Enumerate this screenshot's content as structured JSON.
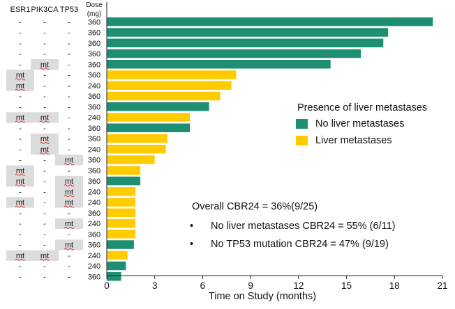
{
  "chart_data": {
    "type": "bar",
    "orientation": "horizontal",
    "xlabel": "Time on Study (months)",
    "xlim": [
      0,
      21
    ],
    "xticks": [
      "0",
      "3",
      "6",
      "9",
      "12",
      "15",
      "18",
      "21"
    ],
    "column_headers": [
      "ESR1",
      "PIK3CA",
      "TP53"
    ],
    "dose_header": [
      "Dose",
      "(mg)"
    ],
    "mutation_label": "mt",
    "no_mutation_label": "-",
    "legend": {
      "title": "Presence of liver metastases",
      "placement": "right",
      "entries": [
        {
          "label": "No liver metastases",
          "color": "#1e8f72"
        },
        {
          "label": "Liver metastases",
          "color": "#ffcc00"
        }
      ]
    },
    "annotations": {
      "overall": "Overall CBR24 = 36%(9/25)",
      "bullet_symbol": "•",
      "bullets": [
        "No liver metastases CBR24 = 55% (6/11)",
        "No TP53 mutation CBR24 = 47% (9/19)"
      ]
    },
    "patients": [
      {
        "esr1": "-",
        "pik3ca": "-",
        "tp53": "-",
        "dose": "360",
        "months": 20.4,
        "liver": false
      },
      {
        "esr1": "-",
        "pik3ca": "-",
        "tp53": "-",
        "dose": "360",
        "months": 17.6,
        "liver": false
      },
      {
        "esr1": "-",
        "pik3ca": "-",
        "tp53": "-",
        "dose": "360",
        "months": 17.3,
        "liver": false
      },
      {
        "esr1": "-",
        "pik3ca": "-",
        "tp53": "-",
        "dose": "360",
        "months": 15.9,
        "liver": false
      },
      {
        "esr1": "-",
        "pik3ca": "mt",
        "tp53": "-",
        "dose": "360",
        "months": 14.0,
        "liver": false
      },
      {
        "esr1": "mt",
        "pik3ca": "-",
        "tp53": "-",
        "dose": "360",
        "months": 8.1,
        "liver": true
      },
      {
        "esr1": "mt",
        "pik3ca": "-",
        "tp53": "-",
        "dose": "240",
        "months": 7.8,
        "liver": true
      },
      {
        "esr1": "-",
        "pik3ca": "-",
        "tp53": "-",
        "dose": "360",
        "months": 7.1,
        "liver": true
      },
      {
        "esr1": "-",
        "pik3ca": "-",
        "tp53": "-",
        "dose": "360",
        "months": 6.4,
        "liver": false
      },
      {
        "esr1": "mt",
        "pik3ca": "mt",
        "tp53": "-",
        "dose": "240",
        "months": 5.2,
        "liver": true
      },
      {
        "esr1": "-",
        "pik3ca": "-",
        "tp53": "-",
        "dose": "360",
        "months": 5.2,
        "liver": false
      },
      {
        "esr1": "-",
        "pik3ca": "mt",
        "tp53": "-",
        "dose": "360",
        "months": 3.8,
        "liver": true
      },
      {
        "esr1": "-",
        "pik3ca": "mt",
        "tp53": "-",
        "dose": "240",
        "months": 3.7,
        "liver": true
      },
      {
        "esr1": "-",
        "pik3ca": "-",
        "tp53": "mt",
        "dose": "360",
        "months": 3.0,
        "liver": true
      },
      {
        "esr1": "mt",
        "pik3ca": "-",
        "tp53": "-",
        "dose": "360",
        "months": 2.1,
        "liver": true
      },
      {
        "esr1": "mt",
        "pik3ca": "-",
        "tp53": "mt",
        "dose": "360",
        "months": 2.1,
        "liver": false
      },
      {
        "esr1": "-",
        "pik3ca": "-",
        "tp53": "mt",
        "dose": "240",
        "months": 1.8,
        "liver": true
      },
      {
        "esr1": "mt",
        "pik3ca": "-",
        "tp53": "mt",
        "dose": "240",
        "months": 1.8,
        "liver": true
      },
      {
        "esr1": "-",
        "pik3ca": "-",
        "tp53": "-",
        "dose": "360",
        "months": 1.8,
        "liver": true
      },
      {
        "esr1": "-",
        "pik3ca": "-",
        "tp53": "mt",
        "dose": "240",
        "months": 1.8,
        "liver": true
      },
      {
        "esr1": "-",
        "pik3ca": "-",
        "tp53": "-",
        "dose": "360",
        "months": 1.8,
        "liver": true
      },
      {
        "esr1": "-",
        "pik3ca": "-",
        "tp53": "mt",
        "dose": "360",
        "months": 1.7,
        "liver": false
      },
      {
        "esr1": "mt",
        "pik3ca": "mt",
        "tp53": "-",
        "dose": "240",
        "months": 1.3,
        "liver": true
      },
      {
        "esr1": "-",
        "pik3ca": "-",
        "tp53": "-",
        "dose": "240",
        "months": 1.2,
        "liver": false
      },
      {
        "esr1": "-",
        "pik3ca": "-",
        "tp53": "-",
        "dose": "360",
        "months": 0.9,
        "liver": false
      }
    ]
  }
}
